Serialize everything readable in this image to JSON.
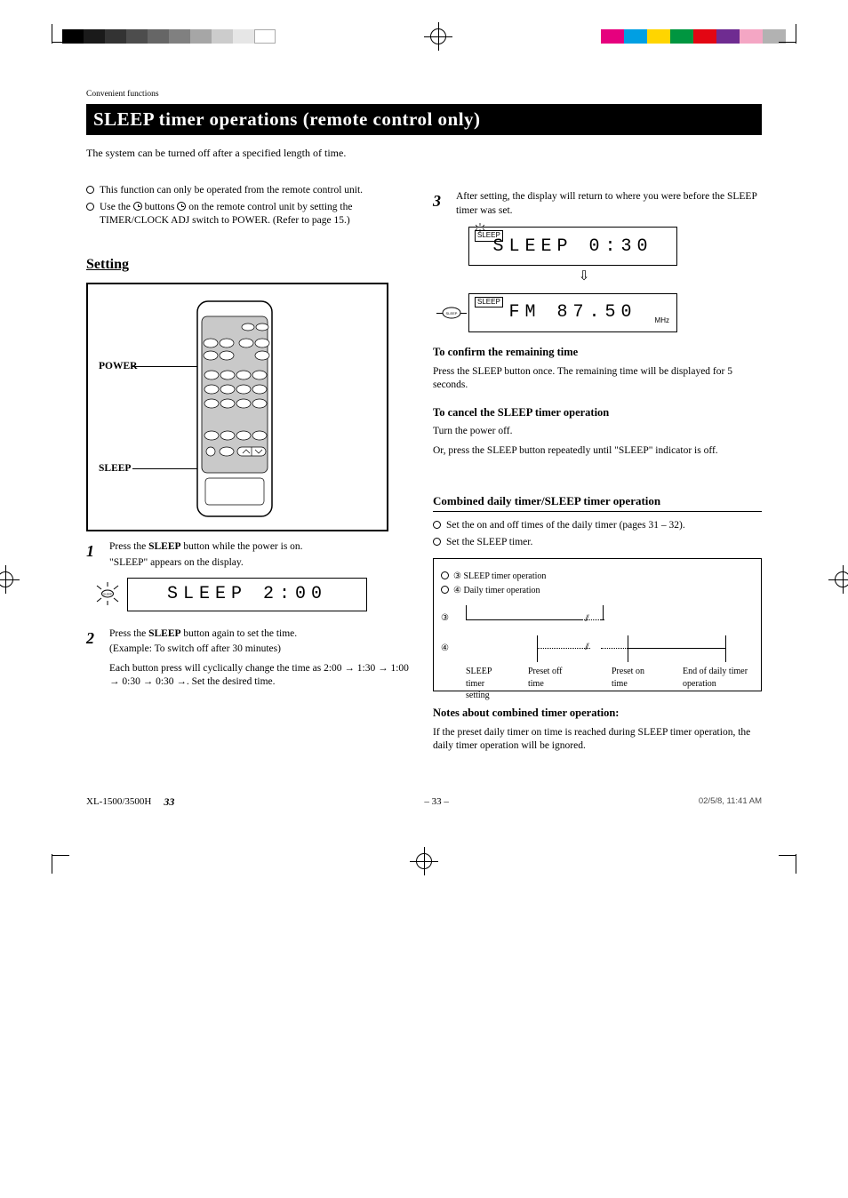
{
  "header_bar": {
    "grayscale": [
      "#000000",
      "#1a1a1a",
      "#333333",
      "#4d4d4d",
      "#666666",
      "#808080",
      "#a6a6a6",
      "#cccccc",
      "#e6e6e6",
      "#ffffff"
    ],
    "colors": [
      "#e6007e",
      "#009fe3",
      "#ffd500",
      "#009640",
      "#e30613",
      "#6f2c91",
      "#f4a6c4",
      "#b2b2b2"
    ]
  },
  "title_caption": "Convenient functions",
  "page_title": "SLEEP timer operations (remote control only)",
  "intro": "The system can be turned off after a specified length of time.",
  "left_bullets": [
    "This function can only be operated from the remote control unit.",
    "Use the buttons on the remote control unit by setting the TIMER/CLOCK ADJ switch to POWER. (Refer to page 15.)"
  ],
  "sections": {
    "setting": "Setting",
    "remote_labels": {
      "sleep": "SLEEP",
      "power": "POWER"
    },
    "step1": {
      "num": "1",
      "body_pre": "Press the ",
      "body_b": "SLEEP",
      "body_post": " button while the power is on.",
      "sub": "\"SLEEP\" appears on the display."
    },
    "lcd1": "SLEEP   2:00",
    "step2": {
      "num": "2",
      "body_pre": "Press the ",
      "body_b": "SLEEP",
      "body_post": " button again to set the time.",
      "sub": "(Example: To switch off after 30 minutes)"
    },
    "step2_para": "Each button press will cyclically change the time as 2:00 → 1:30 → 1:00 → 0:30 → 0:30 →. Set the desired time."
  },
  "right": {
    "step3": {
      "num": "3",
      "body": "After setting, the display will return to where you were before the SLEEP timer was set."
    },
    "lcd_top": "SLEEP   0:30",
    "lcd_bot": "FM   87.50",
    "mhz": "MHz",
    "sleep_ind": "SLEEP",
    "confirm_h": "To confirm the remaining time",
    "confirm_p": "Press the SLEEP button once. The remaining time will be displayed for 5 seconds.",
    "cancel_h": "To cancel the SLEEP timer operation",
    "cancel_p1": "Turn the power off.",
    "cancel_p2": "Or, press the SLEEP button repeatedly until \"SLEEP\" indicator is off.",
    "combined_h": "Combined daily timer/SLEEP timer operation",
    "comb_b1": "Set the on and off times of the daily timer (pages 31 – 32).",
    "comb_b2": "Set the SLEEP timer.",
    "tl": {
      "row3": "SLEEP timer operation",
      "row4": "Daily timer operation",
      "sleep_set": "SLEEP timer setting",
      "preset_off": "Preset off time",
      "preset_on": "Preset on time",
      "end": "End of daily timer operation"
    },
    "note": "Notes about combined timer operation:",
    "note_p": "If the preset daily timer on time is reached during SLEEP timer operation, the daily timer operation will be ignored.",
    "pg": "– 33 –",
    "date": "02/5/8, 11:41 AM",
    "pgn": "33",
    "doc": "XL-1500/3500H"
  }
}
